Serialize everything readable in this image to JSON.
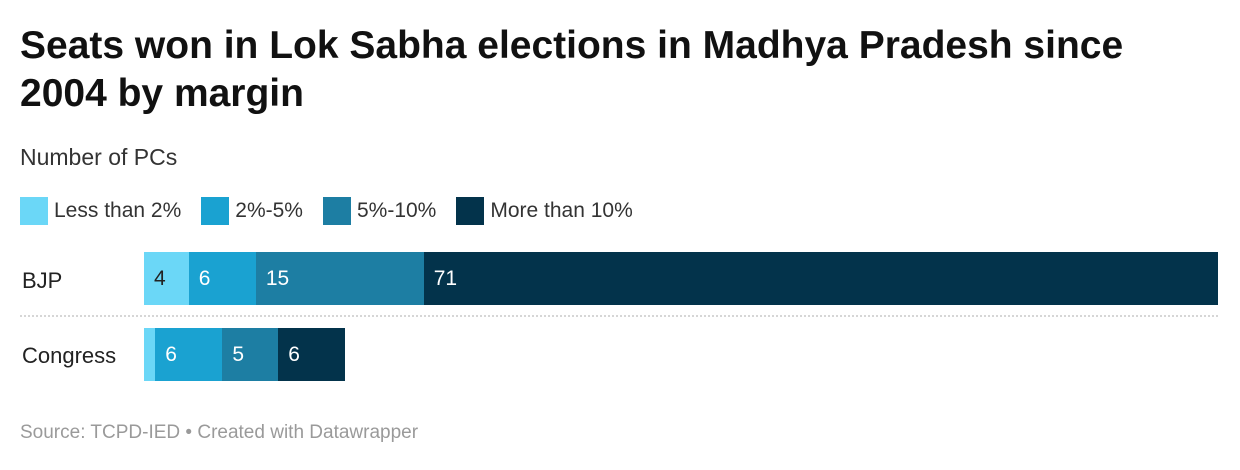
{
  "title": "Seats won in Lok Sabha elections in Madhya Pradesh since 2004 by margin",
  "subtitle": "Number of PCs",
  "source": "Source: TCPD-IED • Created with Datawrapper",
  "chart_data": {
    "type": "bar",
    "orientation": "horizontal",
    "stacked": true,
    "title": "Seats won in Lok Sabha elections in Madhya Pradesh since 2004 by margin",
    "subtitle": "Number of PCs",
    "categories": [
      "BJP",
      "Congress"
    ],
    "series": [
      {
        "name": "Less than 2%",
        "color": "#6bd7f7",
        "values": [
          4,
          1
        ],
        "labels": [
          "4",
          ""
        ]
      },
      {
        "name": "2%-5%",
        "color": "#1aa2d1",
        "values": [
          6,
          6
        ],
        "labels": [
          "6",
          "6"
        ]
      },
      {
        "name": "5%-10%",
        "color": "#1d7ea3",
        "values": [
          15,
          5
        ],
        "labels": [
          "15",
          "5"
        ]
      },
      {
        "name": "More than 10%",
        "color": "#03334b",
        "values": [
          71,
          6
        ],
        "labels": [
          "71",
          "6"
        ]
      }
    ],
    "legend": "top-left",
    "grid": false
  }
}
